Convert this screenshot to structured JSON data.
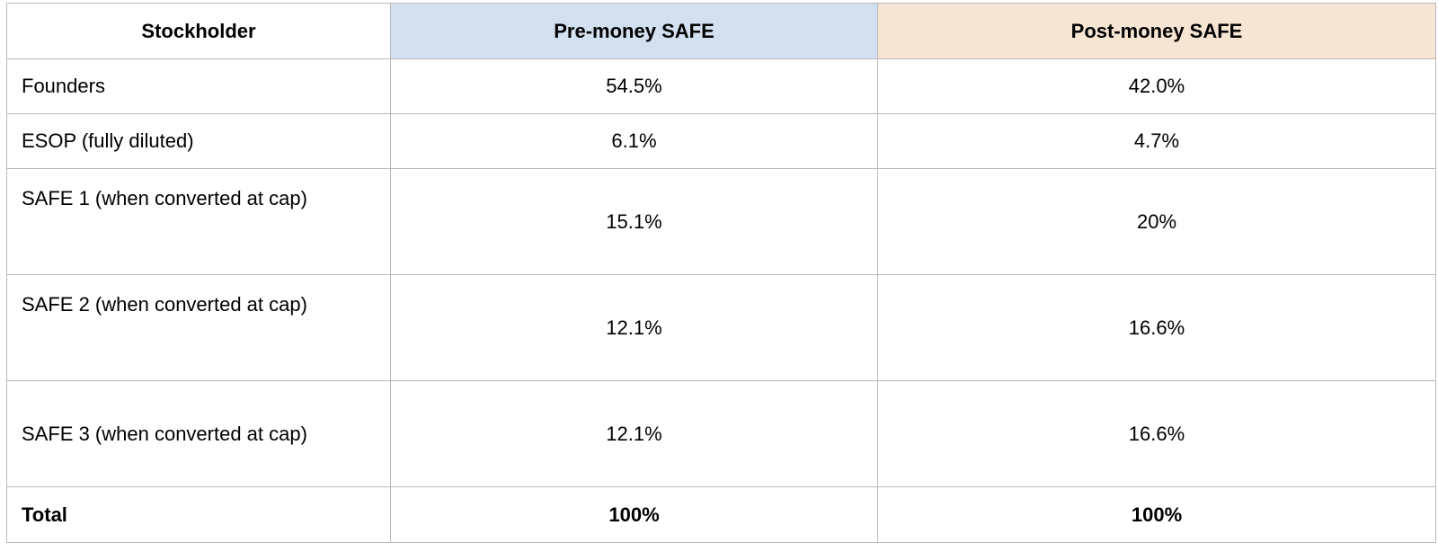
{
  "table": {
    "headers": {
      "stockholder": "Stockholder",
      "pre_money": "Pre-money SAFE",
      "post_money": "Post-money SAFE"
    },
    "rows": [
      {
        "name": "Founders",
        "pre": "54.5%",
        "post": "42.0%"
      },
      {
        "name": "ESOP (fully diluted)",
        "pre": "6.1%",
        "post": "4.7%"
      },
      {
        "name": "SAFE 1 (when converted at cap)",
        "pre": "15.1%",
        "post": "20%"
      },
      {
        "name": "SAFE 2 (when converted at cap)",
        "pre": "12.1%",
        "post": "16.6%"
      },
      {
        "name": "SAFE 3 (when converted at cap)",
        "pre": "12.1%",
        "post": "16.6%"
      }
    ],
    "total": {
      "name": "Total",
      "pre": "100%",
      "post": "100%"
    }
  },
  "colors": {
    "pre_money_header_bg": "#d3e0f0",
    "post_money_header_bg": "#f7e5d3",
    "border": "#b9b9b9"
  }
}
